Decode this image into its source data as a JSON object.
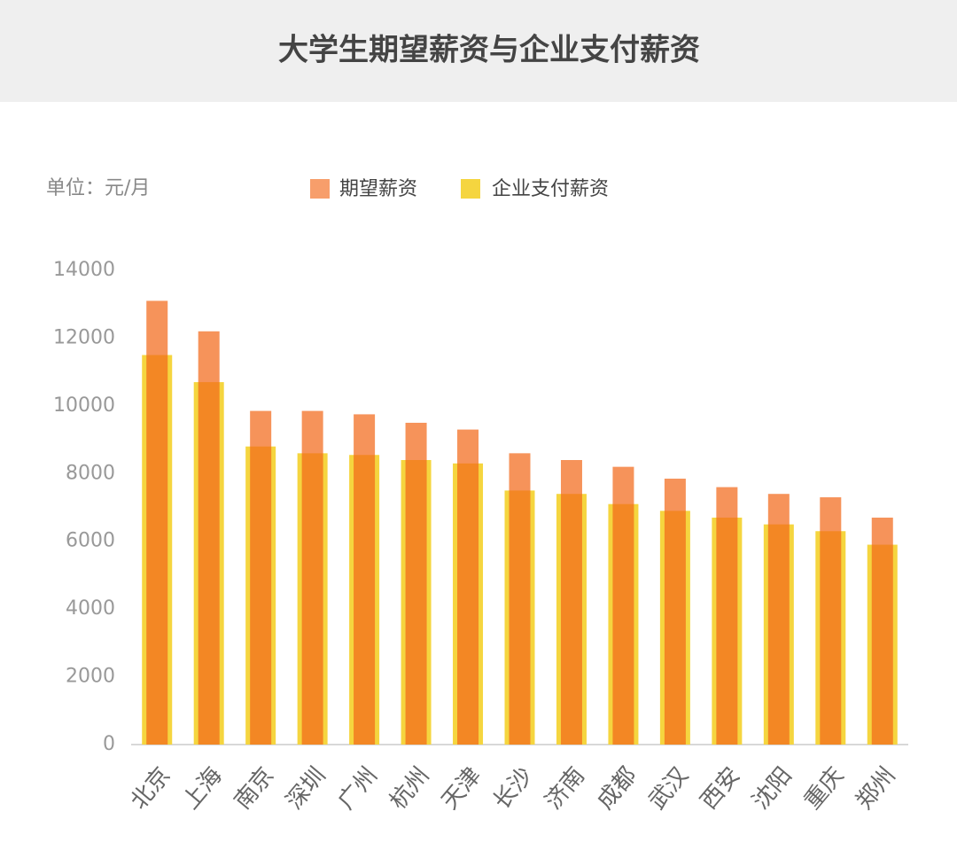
{
  "chart_data": {
    "type": "bar",
    "title": "大学生期望薪资与企业支付薪资",
    "y_axis_label": "单位：元/月",
    "categories": [
      "北京",
      "上海",
      "南京",
      "深圳",
      "广州",
      "杭州",
      "天津",
      "长沙",
      "济南",
      "成都",
      "武汉",
      "西安",
      "沈阳",
      "重庆",
      "郑州"
    ],
    "series": [
      {
        "name": "期望薪资",
        "color": "#f26a1b",
        "values": [
          13100,
          12200,
          9850,
          9850,
          9750,
          9500,
          9300,
          8600,
          8400,
          8200,
          7850,
          7600,
          7400,
          7300,
          6700
        ]
      },
      {
        "name": "企业支付薪资",
        "color": "#f5d53f",
        "values": [
          11500,
          10700,
          8800,
          8600,
          8550,
          8400,
          8300,
          7500,
          7400,
          7100,
          6900,
          6700,
          6500,
          6300,
          5900
        ]
      }
    ],
    "ylim": [
      0,
      14000
    ],
    "yticks": [
      0,
      2000,
      4000,
      6000,
      8000,
      10000,
      12000,
      14000
    ],
    "grid": false
  }
}
